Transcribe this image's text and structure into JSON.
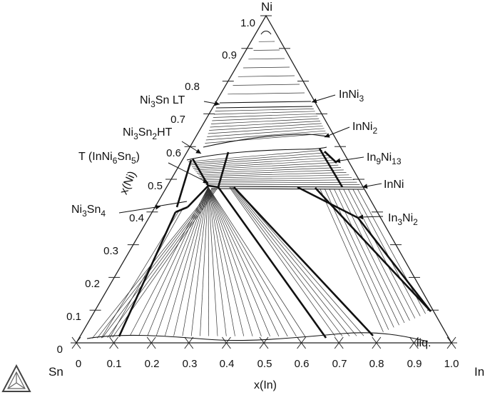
{
  "chart_data": {
    "type": "ternary phase diagram",
    "corners": {
      "top": "Ni",
      "left": "Sn",
      "right": "In"
    },
    "axis_titles": {
      "left": "x(Ni)",
      "bottom": "x(In)"
    },
    "ticks": {
      "left": [
        "0",
        "0.1",
        "0.2",
        "0.3",
        "0.4",
        "0.5",
        "0.6",
        "0.7",
        "0.8",
        "0.9",
        "1.0"
      ],
      "bottom": [
        "0",
        "0.1",
        "0.2",
        "0.3",
        "0.4",
        "0.5",
        "0.6",
        "0.7",
        "0.8",
        "0.9",
        "1.0"
      ]
    },
    "phases": [
      {
        "name": "Ni3Sn LT",
        "parts": [
          [
            "Ni",
            ""
          ],
          [
            "3",
            "sub"
          ],
          [
            "Sn  LT",
            ""
          ]
        ]
      },
      {
        "name": "Ni3Sn2HT",
        "parts": [
          [
            "Ni",
            ""
          ],
          [
            "3",
            "sub"
          ],
          [
            "Sn",
            ""
          ],
          [
            "2",
            "sub"
          ],
          [
            "HT",
            ""
          ]
        ]
      },
      {
        "name": "T (InNi6Sn5)",
        "parts": [
          [
            "T (InNi",
            ""
          ],
          [
            "6",
            "sub"
          ],
          [
            "Sn",
            ""
          ],
          [
            "5",
            "sub"
          ],
          [
            ")",
            ""
          ]
        ]
      },
      {
        "name": "Ni3Sn4",
        "parts": [
          [
            "Ni",
            ""
          ],
          [
            "3",
            "sub"
          ],
          [
            "Sn",
            ""
          ],
          [
            "4",
            "sub"
          ]
        ]
      },
      {
        "name": "InNi3",
        "parts": [
          [
            "InNi",
            ""
          ],
          [
            "3",
            "sub"
          ]
        ]
      },
      {
        "name": "InNi2",
        "parts": [
          [
            "InNi",
            ""
          ],
          [
            "2",
            "sub"
          ]
        ]
      },
      {
        "name": "In9Ni13",
        "parts": [
          [
            "In",
            ""
          ],
          [
            "9",
            "sub"
          ],
          [
            "Ni",
            ""
          ],
          [
            "13",
            "sub"
          ]
        ]
      },
      {
        "name": "InNi",
        "parts": [
          [
            "InNi",
            ""
          ]
        ]
      },
      {
        "name": "In3Ni2",
        "parts": [
          [
            "In",
            ""
          ],
          [
            "3",
            "sub"
          ],
          [
            "Ni",
            ""
          ],
          [
            "2",
            "sub"
          ]
        ]
      },
      {
        "name": "liq.",
        "parts": [
          [
            "liq.",
            ""
          ]
        ]
      }
    ]
  }
}
